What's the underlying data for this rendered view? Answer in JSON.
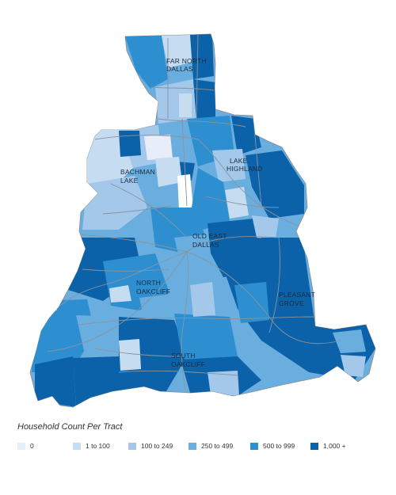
{
  "map": {
    "areas": [
      "FAR NORTH",
      "DALLAS",
      "BACHMAN",
      "LAKE",
      "LAKE",
      "HIGHLAND",
      "OLD EAST",
      "DALLAS",
      "NORTH",
      "OAKCLIFF",
      "PLEASANT",
      "GROVE",
      "SOUTH",
      "OAKCLIFF"
    ]
  },
  "legend": {
    "title": "Household Count Per Tract",
    "items": [
      {
        "label": "0",
        "color": "#e7eef9"
      },
      {
        "label": "1 to 100",
        "color": "#c6dcf1"
      },
      {
        "label": "100 to 249",
        "color": "#a3c8ea"
      },
      {
        "label": "250 to 499",
        "color": "#6aaedf"
      },
      {
        "label": "500 to 999",
        "color": "#2d8fd0"
      },
      {
        "label": "1,000 +",
        "color": "#0b62a9"
      }
    ]
  }
}
